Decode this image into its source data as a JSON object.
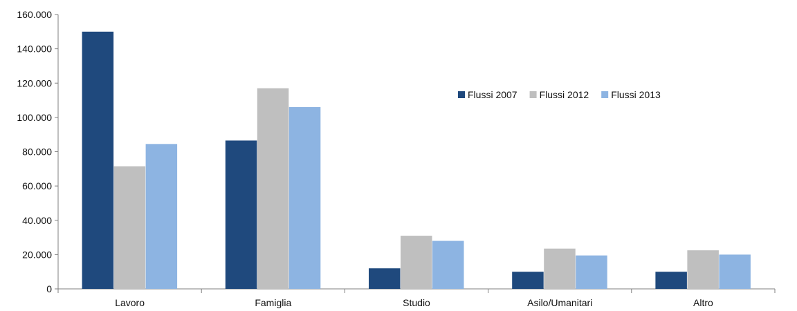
{
  "chart_data": {
    "type": "bar",
    "title": "",
    "xlabel": "",
    "ylabel": "",
    "categories": [
      "Lavoro",
      "Famiglia",
      "Studio",
      "Asilo/Umanitari",
      "Altro"
    ],
    "series": [
      {
        "name": "Flussi 2007",
        "color": "#1f497d",
        "values": [
          150000,
          86500,
          12000,
          10000,
          10000
        ]
      },
      {
        "name": "Flussi 2012",
        "color": "#bfbfbf",
        "values": [
          71500,
          117000,
          31000,
          23500,
          22500
        ]
      },
      {
        "name": "Flussi 2013",
        "color": "#8db4e2",
        "values": [
          84500,
          106000,
          28000,
          19500,
          20000
        ]
      }
    ],
    "ylim": [
      0,
      160000
    ],
    "yticks": [
      0,
      20000,
      40000,
      60000,
      80000,
      100000,
      120000,
      140000,
      160000
    ],
    "ytick_labels": [
      "0",
      "20.000",
      "40.000",
      "60.000",
      "80.000",
      "100.000",
      "120.000",
      "140.000",
      "160.000"
    ],
    "grid": false,
    "legend_position": "top-right"
  }
}
